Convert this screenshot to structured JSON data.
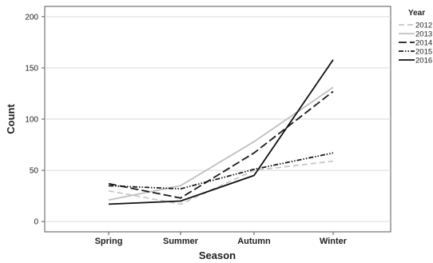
{
  "chart_data": {
    "type": "line",
    "categories": [
      "Spring",
      "Summer",
      "Autumn",
      "Winter"
    ],
    "xlabel": "Season",
    "ylabel": "Count",
    "ylim": [
      -10,
      210
    ],
    "yticks": [
      0,
      50,
      100,
      150,
      200
    ],
    "grid": "horizontal",
    "legend": {
      "title": "Year",
      "position": "right"
    },
    "series": [
      {
        "name": "2012",
        "values": [
          30,
          17,
          50,
          59
        ],
        "color": "#c8c8c8",
        "dash": "dashed"
      },
      {
        "name": "2013",
        "values": [
          21,
          35,
          78,
          131
        ],
        "color": "#c0c0c0",
        "dash": "solid"
      },
      {
        "name": "2014",
        "values": [
          37,
          23,
          67,
          127
        ],
        "color": "#1a1a1a",
        "dash": "long-dash"
      },
      {
        "name": "2015",
        "values": [
          35,
          32,
          51,
          67
        ],
        "color": "#1a1a1a",
        "dash": "dash-dot-dot"
      },
      {
        "name": "2016",
        "values": [
          17,
          20,
          45,
          158
        ],
        "color": "#111111",
        "dash": "solid"
      }
    ]
  }
}
